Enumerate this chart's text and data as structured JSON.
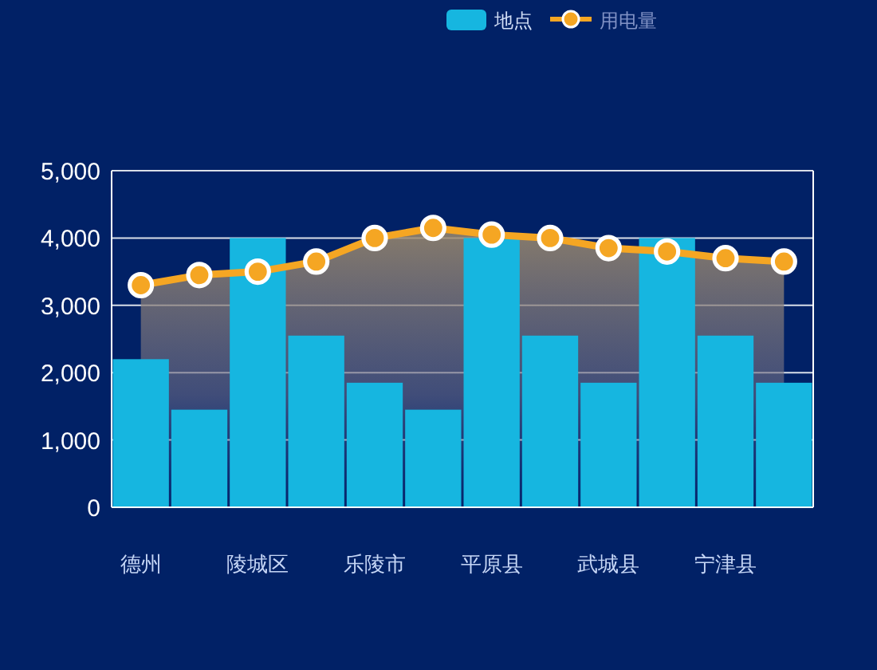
{
  "chart_data": {
    "type": "bar",
    "categories": [
      "德州",
      null,
      "陵城区",
      null,
      "乐陵市",
      null,
      "平原县",
      null,
      "武城县",
      null,
      "宁津县",
      null
    ],
    "series": [
      {
        "name": "地点",
        "color": "#16b6e0",
        "values": [
          2200,
          1450,
          4000,
          2550,
          1850,
          1450,
          4000,
          2550,
          1850,
          4000,
          2550,
          1850
        ]
      },
      {
        "name": "用电量",
        "type": "area",
        "color": "#f5a623",
        "values": [
          3300,
          3450,
          3500,
          3650,
          4000,
          4150,
          4050,
          4000,
          3850,
          3800,
          3700,
          3650
        ]
      }
    ],
    "ylim": [
      0,
      5000
    ],
    "yticks": [
      {
        "value": 0,
        "label": "0"
      },
      {
        "value": 1000,
        "label": "1,000"
      },
      {
        "value": 2000,
        "label": "2,000"
      },
      {
        "value": 3000,
        "label": "3,000"
      },
      {
        "value": 4000,
        "label": "4,000"
      },
      {
        "value": 5000,
        "label": "5,000"
      }
    ],
    "grid": "y",
    "legend": "top",
    "marker": "circle"
  }
}
